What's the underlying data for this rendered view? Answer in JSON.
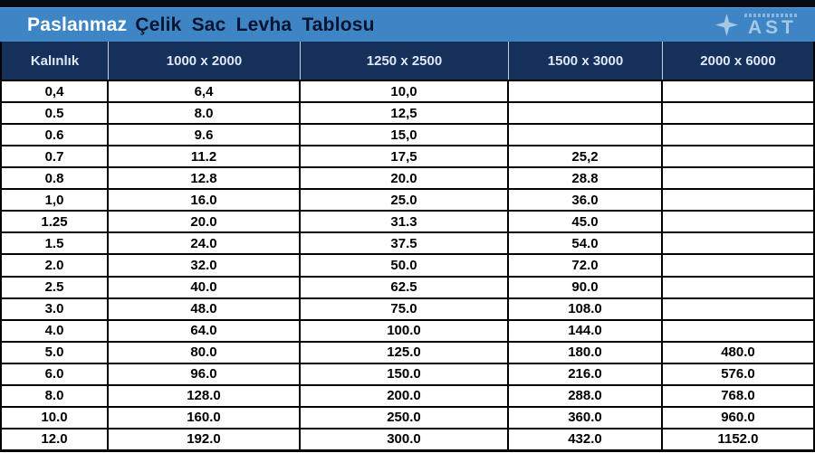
{
  "header": {
    "title_part1": "Paslanmaz",
    "title_part2": "Çelik Sac Levha Tablosu",
    "logo": {
      "icon": "four-point-star-icon",
      "text": "AST"
    }
  },
  "colors": {
    "titlebar_blue": "#3e85c6",
    "header_navy": "#16305c",
    "top_strip_dark": "#070b16",
    "title_dark_text": "#0a1430",
    "logo_light_blue": "#a7c7e3",
    "grid_line": "#000000",
    "header_text": "#dfe9f5"
  },
  "chart_data": {
    "type": "table",
    "title": "Paslanmaz Çelik Sac Levha Tablosu",
    "columns": [
      "Kalınlık",
      "1000 x 2000",
      "1250 x 2500",
      "1500 x 3000",
      "2000 x 6000"
    ],
    "rows": [
      [
        "0,4",
        "6,4",
        "10,0",
        "",
        ""
      ],
      [
        "0.5",
        "8.0",
        "12,5",
        "",
        ""
      ],
      [
        "0.6",
        "9.6",
        "15,0",
        "",
        ""
      ],
      [
        "0.7",
        "11.2",
        "17,5",
        "25,2",
        ""
      ],
      [
        "0.8",
        "12.8",
        "20.0",
        "28.8",
        ""
      ],
      [
        "1,0",
        "16.0",
        "25.0",
        "36.0",
        ""
      ],
      [
        "1.25",
        "20.0",
        "31.3",
        "45.0",
        ""
      ],
      [
        "1.5",
        "24.0",
        "37.5",
        "54.0",
        ""
      ],
      [
        "2.0",
        "32.0",
        "50.0",
        "72.0",
        ""
      ],
      [
        "2.5",
        "40.0",
        "62.5",
        "90.0",
        ""
      ],
      [
        "3.0",
        "48.0",
        "75.0",
        "108.0",
        ""
      ],
      [
        "4.0",
        "64.0",
        "100.0",
        "144.0",
        ""
      ],
      [
        "5.0",
        "80.0",
        "125.0",
        "180.0",
        "480.0"
      ],
      [
        "6.0",
        "96.0",
        "150.0",
        "216.0",
        "576.0"
      ],
      [
        "8.0",
        "128.0",
        "200.0",
        "288.0",
        "768.0"
      ],
      [
        "10.0",
        "160.0",
        "250.0",
        "360.0",
        "960.0"
      ],
      [
        "12.0",
        "192.0",
        "300.0",
        "432.0",
        "1152.0"
      ]
    ]
  }
}
